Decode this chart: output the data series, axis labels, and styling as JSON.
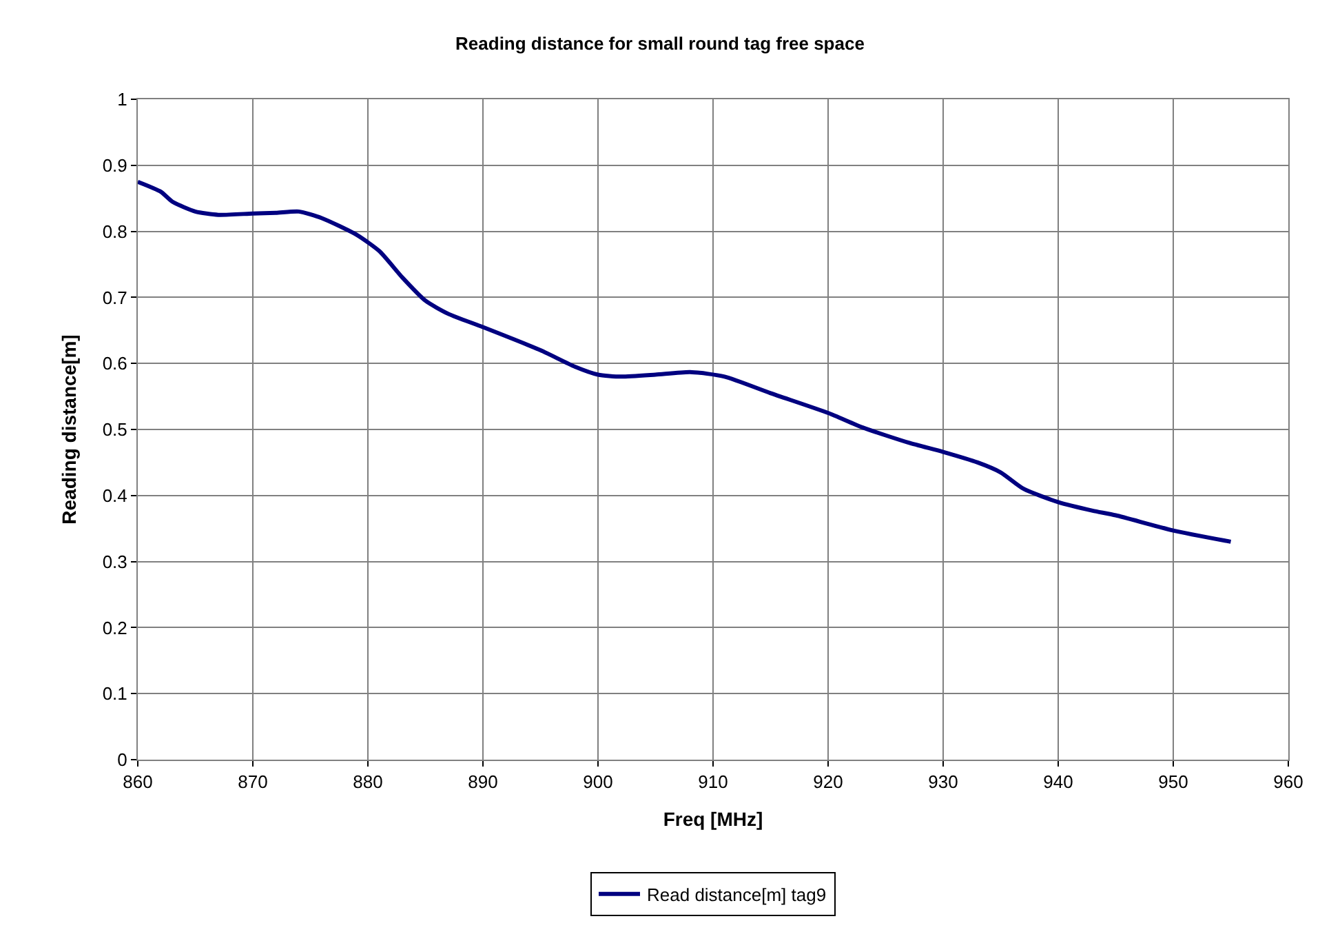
{
  "chart_data": {
    "type": "line",
    "title": "Reading distance for small round tag free space",
    "xlabel": "Freq [MHz]",
    "ylabel": "Reading distance[m]",
    "x": [
      860,
      862,
      863,
      865,
      867,
      870,
      872,
      874,
      876,
      879,
      881,
      883,
      885,
      887,
      890,
      895,
      898,
      900,
      902,
      905,
      908,
      911,
      915,
      920,
      923,
      927,
      930,
      933,
      935,
      937,
      940,
      943,
      945,
      950,
      955
    ],
    "series": [
      {
        "name": "Read distance[m] tag9",
        "color": "#000080",
        "values": [
          0.875,
          0.86,
          0.845,
          0.83,
          0.825,
          0.827,
          0.828,
          0.83,
          0.82,
          0.795,
          0.77,
          0.73,
          0.695,
          0.675,
          0.655,
          0.62,
          0.595,
          0.583,
          0.58,
          0.583,
          0.587,
          0.58,
          0.555,
          0.525,
          0.503,
          0.48,
          0.466,
          0.45,
          0.435,
          0.41,
          0.39,
          0.377,
          0.37,
          0.347,
          0.33
        ]
      }
    ],
    "xlim": [
      860,
      960
    ],
    "xticks": [
      860,
      870,
      880,
      890,
      900,
      910,
      920,
      930,
      940,
      950,
      960
    ],
    "ylim": [
      0,
      1
    ],
    "yticks": [
      0,
      0.1,
      0.2,
      0.3,
      0.4,
      0.5,
      0.6,
      0.7,
      0.8,
      0.9,
      1
    ],
    "grid": true,
    "legend": "bottom",
    "marker": "none",
    "line_style": "solid"
  }
}
